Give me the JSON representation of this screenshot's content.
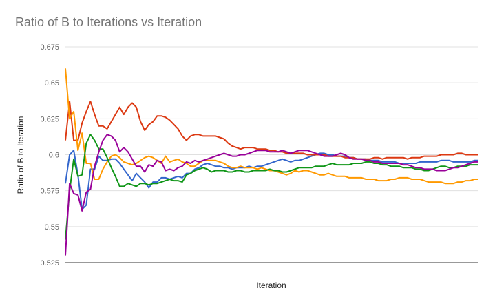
{
  "chart_data": {
    "type": "line",
    "title": "Ratio of B to Iterations vs Iteration",
    "xlabel": "Iteration",
    "ylabel": "Ratio of B to Iteration",
    "ylim": [
      0.525,
      0.675
    ],
    "y_ticks": [
      "0.525",
      "0.55",
      "0.575",
      "0.6",
      "0.625",
      "0.65",
      "0.675"
    ],
    "grid": true,
    "legend": "none",
    "x": [
      1,
      2,
      3,
      4,
      5,
      6,
      7,
      8,
      9,
      10,
      11,
      12,
      13,
      14,
      15,
      16,
      17,
      18,
      19,
      20,
      21,
      22,
      23,
      24,
      25,
      26,
      27,
      28,
      29,
      30,
      31,
      32,
      33,
      34,
      35,
      36,
      37,
      38,
      39,
      40,
      41,
      42,
      43,
      44,
      45,
      46,
      47,
      48,
      49,
      50,
      51,
      52,
      53,
      54,
      55,
      56,
      57,
      58,
      59,
      60,
      61,
      62,
      63,
      64,
      65,
      66,
      67,
      68,
      69,
      70,
      71,
      72,
      73,
      74,
      75,
      76,
      77,
      78,
      79,
      80,
      81,
      82,
      83,
      84,
      85,
      86,
      87,
      88,
      89,
      90,
      91,
      92,
      93,
      94,
      95,
      96,
      97,
      98,
      99,
      100
    ],
    "series": [
      {
        "color": "#3366cc",
        "values": [
          0.58,
          0.6,
          0.603,
          0.586,
          0.562,
          0.565,
          0.59,
          0.59,
          0.599,
          0.596,
          0.596,
          0.597,
          0.597,
          0.594,
          0.59,
          0.586,
          0.582,
          0.587,
          0.584,
          0.581,
          0.577,
          0.581,
          0.581,
          0.584,
          0.584,
          0.583,
          0.584,
          0.585,
          0.584,
          0.587,
          0.587,
          0.59,
          0.591,
          0.593,
          0.594,
          0.593,
          0.592,
          0.592,
          0.591,
          0.591,
          0.59,
          0.591,
          0.591,
          0.591,
          0.592,
          0.591,
          0.592,
          0.592,
          0.593,
          0.594,
          0.595,
          0.596,
          0.597,
          0.596,
          0.595,
          0.596,
          0.596,
          0.597,
          0.598,
          0.599,
          0.6,
          0.601,
          0.601,
          0.6,
          0.6,
          0.599,
          0.599,
          0.599,
          0.598,
          0.598,
          0.597,
          0.597,
          0.597,
          0.596,
          0.596,
          0.596,
          0.595,
          0.595,
          0.595,
          0.595,
          0.594,
          0.594,
          0.594,
          0.594,
          0.594,
          0.595,
          0.595,
          0.595,
          0.595,
          0.595,
          0.596,
          0.596,
          0.596,
          0.595,
          0.595,
          0.595,
          0.595,
          0.595,
          0.596,
          0.596
        ]
      },
      {
        "color": "#dc3912",
        "values": [
          0.61,
          0.637,
          0.61,
          0.61,
          0.622,
          0.63,
          0.637,
          0.628,
          0.62,
          0.62,
          0.618,
          0.623,
          0.628,
          0.633,
          0.628,
          0.633,
          0.636,
          0.633,
          0.623,
          0.617,
          0.621,
          0.623,
          0.627,
          0.627,
          0.626,
          0.624,
          0.621,
          0.618,
          0.613,
          0.61,
          0.613,
          0.614,
          0.614,
          0.613,
          0.613,
          0.613,
          0.613,
          0.612,
          0.611,
          0.608,
          0.606,
          0.605,
          0.604,
          0.605,
          0.605,
          0.605,
          0.604,
          0.604,
          0.604,
          0.603,
          0.603,
          0.602,
          0.602,
          0.601,
          0.601,
          0.601,
          0.601,
          0.601,
          0.6,
          0.6,
          0.6,
          0.6,
          0.6,
          0.599,
          0.599,
          0.599,
          0.599,
          0.598,
          0.598,
          0.598,
          0.597,
          0.597,
          0.597,
          0.597,
          0.598,
          0.598,
          0.597,
          0.598,
          0.598,
          0.598,
          0.598,
          0.598,
          0.597,
          0.598,
          0.598,
          0.598,
          0.599,
          0.599,
          0.599,
          0.599,
          0.6,
          0.6,
          0.6,
          0.6,
          0.601,
          0.601,
          0.6,
          0.6,
          0.6,
          0.6
        ]
      },
      {
        "color": "#ff9900",
        "values": [
          0.66,
          0.625,
          0.63,
          0.603,
          0.615,
          0.594,
          0.594,
          0.583,
          0.583,
          0.59,
          0.595,
          0.599,
          0.6,
          0.598,
          0.595,
          0.594,
          0.593,
          0.594,
          0.596,
          0.598,
          0.599,
          0.598,
          0.596,
          0.594,
          0.599,
          0.595,
          0.596,
          0.597,
          0.595,
          0.594,
          0.592,
          0.592,
          0.594,
          0.596,
          0.596,
          0.596,
          0.596,
          0.595,
          0.594,
          0.592,
          0.591,
          0.591,
          0.592,
          0.591,
          0.591,
          0.591,
          0.59,
          0.591,
          0.59,
          0.589,
          0.589,
          0.588,
          0.587,
          0.586,
          0.587,
          0.589,
          0.588,
          0.589,
          0.589,
          0.588,
          0.587,
          0.586,
          0.586,
          0.587,
          0.586,
          0.585,
          0.585,
          0.585,
          0.584,
          0.584,
          0.584,
          0.584,
          0.583,
          0.583,
          0.583,
          0.582,
          0.582,
          0.582,
          0.583,
          0.583,
          0.584,
          0.584,
          0.584,
          0.583,
          0.583,
          0.583,
          0.582,
          0.581,
          0.581,
          0.581,
          0.581,
          0.58,
          0.58,
          0.58,
          0.581,
          0.581,
          0.582,
          0.582,
          0.583,
          0.583
        ]
      },
      {
        "color": "#109618",
        "values": [
          0.541,
          0.575,
          0.597,
          0.585,
          0.586,
          0.608,
          0.614,
          0.61,
          0.604,
          0.604,
          0.598,
          0.591,
          0.585,
          0.578,
          0.578,
          0.58,
          0.579,
          0.578,
          0.58,
          0.58,
          0.579,
          0.58,
          0.58,
          0.581,
          0.582,
          0.583,
          0.582,
          0.582,
          0.581,
          0.586,
          0.587,
          0.589,
          0.59,
          0.591,
          0.59,
          0.588,
          0.589,
          0.589,
          0.589,
          0.588,
          0.588,
          0.589,
          0.589,
          0.588,
          0.588,
          0.589,
          0.589,
          0.589,
          0.589,
          0.59,
          0.589,
          0.589,
          0.588,
          0.588,
          0.589,
          0.59,
          0.591,
          0.591,
          0.591,
          0.591,
          0.592,
          0.592,
          0.592,
          0.593,
          0.594,
          0.593,
          0.593,
          0.593,
          0.593,
          0.594,
          0.594,
          0.594,
          0.595,
          0.595,
          0.594,
          0.594,
          0.593,
          0.593,
          0.592,
          0.592,
          0.592,
          0.591,
          0.591,
          0.591,
          0.59,
          0.59,
          0.589,
          0.589,
          0.59,
          0.591,
          0.592,
          0.592,
          0.591,
          0.591,
          0.592,
          0.592,
          0.592,
          0.593,
          0.593,
          0.593
        ]
      },
      {
        "color": "#990099",
        "values": [
          0.53,
          0.58,
          0.573,
          0.572,
          0.561,
          0.574,
          0.576,
          0.592,
          0.602,
          0.61,
          0.614,
          0.613,
          0.61,
          0.602,
          0.605,
          0.602,
          0.597,
          0.592,
          0.592,
          0.588,
          0.593,
          0.592,
          0.596,
          0.595,
          0.589,
          0.59,
          0.589,
          0.591,
          0.592,
          0.595,
          0.594,
          0.596,
          0.595,
          0.596,
          0.597,
          0.598,
          0.599,
          0.6,
          0.601,
          0.6,
          0.599,
          0.599,
          0.6,
          0.6,
          0.601,
          0.602,
          0.603,
          0.603,
          0.603,
          0.602,
          0.602,
          0.602,
          0.603,
          0.602,
          0.601,
          0.602,
          0.603,
          0.603,
          0.603,
          0.602,
          0.601,
          0.6,
          0.599,
          0.599,
          0.599,
          0.6,
          0.601,
          0.6,
          0.598,
          0.597,
          0.597,
          0.597,
          0.596,
          0.596,
          0.595,
          0.595,
          0.594,
          0.594,
          0.594,
          0.594,
          0.594,
          0.593,
          0.593,
          0.592,
          0.591,
          0.591,
          0.59,
          0.59,
          0.59,
          0.589,
          0.589,
          0.589,
          0.59,
          0.591,
          0.591,
          0.592,
          0.593,
          0.594,
          0.595,
          0.595
        ]
      }
    ]
  }
}
